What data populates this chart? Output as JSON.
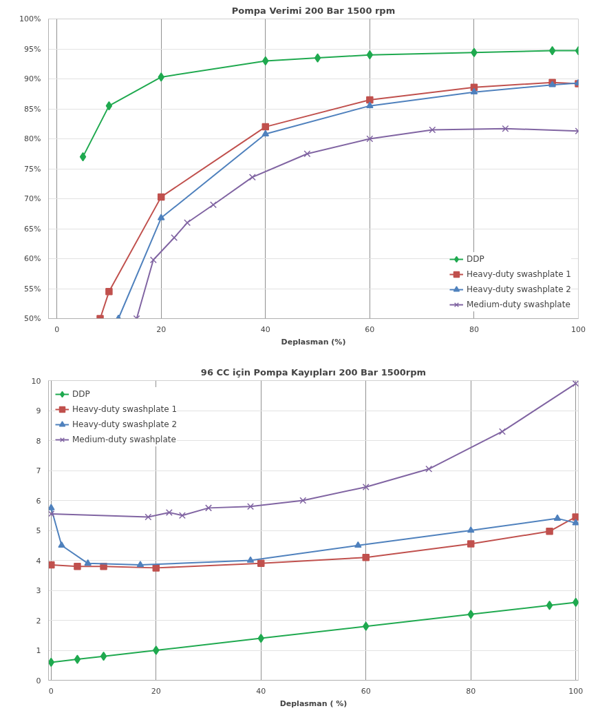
{
  "chart_data": [
    {
      "type": "line",
      "title": "Pompa Verimi 200 Bar 1500 rpm",
      "xlabel": "Deplasman (%)",
      "xlim": [
        -1.6,
        100
      ],
      "xticks": [
        0,
        20,
        40,
        60,
        80,
        100
      ],
      "ylim": [
        50,
        100
      ],
      "yticks": [
        {
          "value": 50,
          "label": "50%"
        },
        {
          "value": 55,
          "label": "55%"
        },
        {
          "value": 60,
          "label": "60%"
        },
        {
          "value": 65,
          "label": "65%"
        },
        {
          "value": 70,
          "label": "70%"
        },
        {
          "value": 75,
          "label": "75%"
        },
        {
          "value": 80,
          "label": "80%"
        },
        {
          "value": 85,
          "label": "85%"
        },
        {
          "value": 90,
          "label": "90%"
        },
        {
          "value": 95,
          "label": "95%"
        },
        {
          "value": 100,
          "label": "100%"
        }
      ],
      "grid": true,
      "legend": "bottom right",
      "series": [
        {
          "name": "DDP",
          "color": "#1fa94f",
          "marker": "diamond",
          "x": [
            5,
            10,
            20,
            40,
            50,
            60,
            80,
            95,
            100
          ],
          "values": [
            77,
            85.5,
            90.3,
            93,
            93.5,
            94,
            94.4,
            94.7,
            94.7
          ]
        },
        {
          "name": "Heavy-duty swashplate 1",
          "color": "#c0504d",
          "marker": "square",
          "x": [
            8.3,
            10,
            20,
            40,
            60,
            80,
            95,
            100
          ],
          "values": [
            50,
            54.5,
            70.3,
            82,
            86.5,
            88.6,
            89.4,
            89.2
          ]
        },
        {
          "name": "Heavy-duty swashplate 2",
          "color": "#4f81bd",
          "marker": "triangle",
          "x": [
            11.8,
            20,
            40,
            60,
            80,
            95,
            100
          ],
          "values": [
            50,
            66.8,
            80.8,
            85.5,
            87.8,
            89,
            89.3
          ]
        },
        {
          "name": "Medium-duty swashplate",
          "color": "#8064a2",
          "marker": "cross",
          "x": [
            15.3,
            18.5,
            22.5,
            25,
            30,
            37.5,
            48,
            60,
            72,
            86,
            100
          ],
          "values": [
            50,
            59.8,
            63.5,
            66,
            69,
            73.6,
            77.5,
            80,
            81.5,
            81.7,
            81.3
          ]
        }
      ]
    },
    {
      "type": "line",
      "title": "96 CC için Pompa Kayıpları 200 Bar 1500rpm",
      "xlabel": "Deplasman ( %)",
      "xlim": [
        -0.5,
        100.5
      ],
      "xticks": [
        0,
        20,
        40,
        60,
        80,
        100
      ],
      "ylim": [
        0,
        10
      ],
      "yticks": [
        0,
        1,
        2,
        3,
        4,
        5,
        6,
        7,
        8,
        9,
        10
      ],
      "grid": true,
      "legend": "top left",
      "series": [
        {
          "name": "DDP",
          "color": "#1fa94f",
          "marker": "diamond",
          "x": [
            0,
            5,
            10,
            20,
            40,
            60,
            80,
            95,
            100
          ],
          "values": [
            0.6,
            0.7,
            0.8,
            1.0,
            1.4,
            1.8,
            2.2,
            2.5,
            2.6
          ]
        },
        {
          "name": "Heavy-duty swashplate 1",
          "color": "#c0504d",
          "marker": "square",
          "x": [
            0,
            5,
            10,
            20,
            40,
            60,
            80,
            95,
            100
          ],
          "values": [
            3.85,
            3.8,
            3.8,
            3.75,
            3.9,
            4.1,
            4.55,
            4.97,
            5.45
          ]
        },
        {
          "name": "Heavy-duty swashplate 2",
          "color": "#4f81bd",
          "marker": "triangle",
          "x": [
            0,
            2,
            7,
            17,
            38,
            58.5,
            80,
            96.5,
            100
          ],
          "values": [
            5.75,
            4.5,
            3.9,
            3.85,
            4.0,
            4.5,
            5.0,
            5.4,
            5.25
          ]
        },
        {
          "name": "Medium-duty swashplate",
          "color": "#8064a2",
          "marker": "cross",
          "x": [
            0,
            18.5,
            22.5,
            25,
            30,
            38,
            48,
            60,
            72,
            86,
            100
          ],
          "values": [
            5.55,
            5.45,
            5.6,
            5.5,
            5.75,
            5.8,
            6.0,
            6.45,
            7.05,
            8.3,
            9.9
          ]
        }
      ]
    }
  ]
}
